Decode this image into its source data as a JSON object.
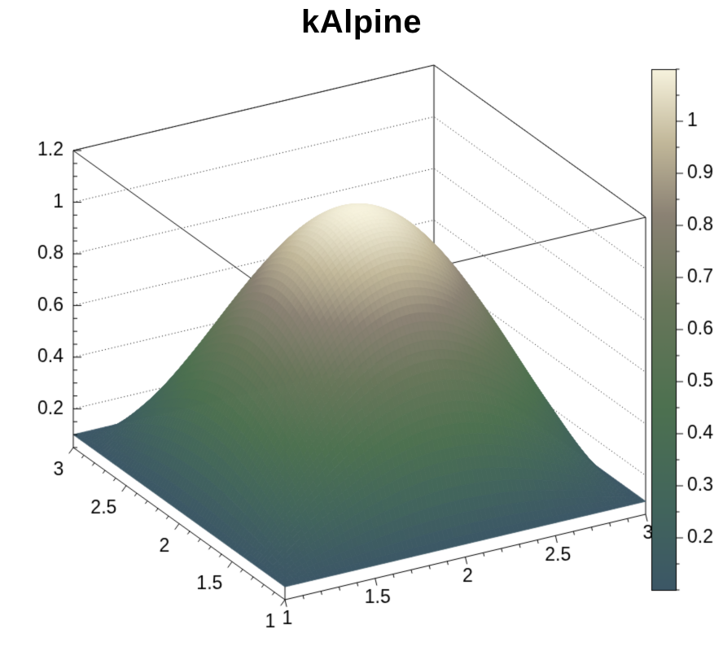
{
  "title": "kAlpine",
  "chart_data": {
    "type": "surface3d",
    "title": "kAlpine",
    "palette_name": "kAlpine",
    "x_range": [
      1,
      3
    ],
    "y_range": [
      1,
      3
    ],
    "z_axis_range": [
      0.05,
      1.2
    ],
    "color_range": [
      0.1,
      1.1
    ],
    "x": [
      1,
      1.2,
      1.4,
      1.6,
      1.8,
      2,
      2.2,
      2.4,
      2.6,
      2.8,
      3
    ],
    "y": [
      1,
      1.2,
      1.4,
      1.6,
      1.8,
      2,
      2.2,
      2.4,
      2.6,
      2.8,
      3
    ],
    "z": [
      [
        0.1,
        0.1,
        0.1,
        0.1,
        0.1,
        0.1,
        0.1,
        0.1,
        0.1,
        0.1,
        0.1
      ],
      [
        0.1,
        0.196,
        0.282,
        0.35,
        0.394,
        0.409,
        0.394,
        0.35,
        0.282,
        0.196,
        0.1
      ],
      [
        0.1,
        0.282,
        0.446,
        0.576,
        0.659,
        0.688,
        0.659,
        0.576,
        0.446,
        0.282,
        0.1
      ],
      [
        0.1,
        0.35,
        0.576,
        0.754,
        0.869,
        0.909,
        0.869,
        0.754,
        0.576,
        0.35,
        0.1
      ],
      [
        0.1,
        0.394,
        0.659,
        0.869,
        1.004,
        1.051,
        1.004,
        0.869,
        0.659,
        0.394,
        0.1
      ],
      [
        0.1,
        0.409,
        0.688,
        0.909,
        1.051,
        1.1,
        1.051,
        0.909,
        0.688,
        0.409,
        0.1
      ],
      [
        0.1,
        0.394,
        0.659,
        0.869,
        1.004,
        1.051,
        1.004,
        0.869,
        0.659,
        0.394,
        0.1
      ],
      [
        0.1,
        0.35,
        0.576,
        0.754,
        0.869,
        0.909,
        0.869,
        0.754,
        0.576,
        0.35,
        0.1
      ],
      [
        0.1,
        0.282,
        0.446,
        0.576,
        0.659,
        0.688,
        0.659,
        0.576,
        0.446,
        0.282,
        0.1
      ],
      [
        0.1,
        0.196,
        0.282,
        0.35,
        0.394,
        0.409,
        0.394,
        0.35,
        0.282,
        0.196,
        0.1
      ],
      [
        0.1,
        0.1,
        0.1,
        0.1,
        0.1,
        0.1,
        0.1,
        0.1,
        0.1,
        0.1,
        0.1
      ]
    ],
    "x_ticks": {
      "major": [
        1,
        1.5,
        2,
        2.5,
        3
      ],
      "labels": [
        "1",
        "1.5",
        "2",
        "2.5",
        "3"
      ],
      "minor_step": 0.1
    },
    "y_ticks": {
      "major": [
        1,
        1.5,
        2,
        2.5,
        3
      ],
      "labels": [
        "1",
        "1.5",
        "2",
        "2.5",
        "3"
      ],
      "minor_step": 0.1
    },
    "z_ticks": {
      "major": [
        0.2,
        0.4,
        0.6,
        0.8,
        1,
        1.2
      ],
      "labels": [
        "0.2",
        "0.4",
        "0.6",
        "0.8",
        "1",
        "1.2"
      ],
      "minor_step": 0.05
    },
    "colorbar": {
      "ticks": [
        0.2,
        0.3,
        0.4,
        0.5,
        0.6,
        0.7,
        0.8,
        0.9,
        1
      ],
      "labels": [
        "0.2",
        "0.3",
        "0.4",
        "0.5",
        "0.6",
        "0.7",
        "0.8",
        "0.9",
        "1"
      ],
      "minor_step": 0.05
    },
    "palette": {
      "name": "kAlpine",
      "stops": [
        [
          0.0,
          "#3c5766"
        ],
        [
          0.16,
          "#42655c"
        ],
        [
          0.35,
          "#4d7150"
        ],
        [
          0.55,
          "#68765a"
        ],
        [
          0.72,
          "#8b8274"
        ],
        [
          0.86,
          "#c2b89a"
        ],
        [
          1.0,
          "#f7f3de"
        ]
      ]
    },
    "grid": "dotted z-level grid on back walls",
    "legend_position": "right-colorbar"
  }
}
